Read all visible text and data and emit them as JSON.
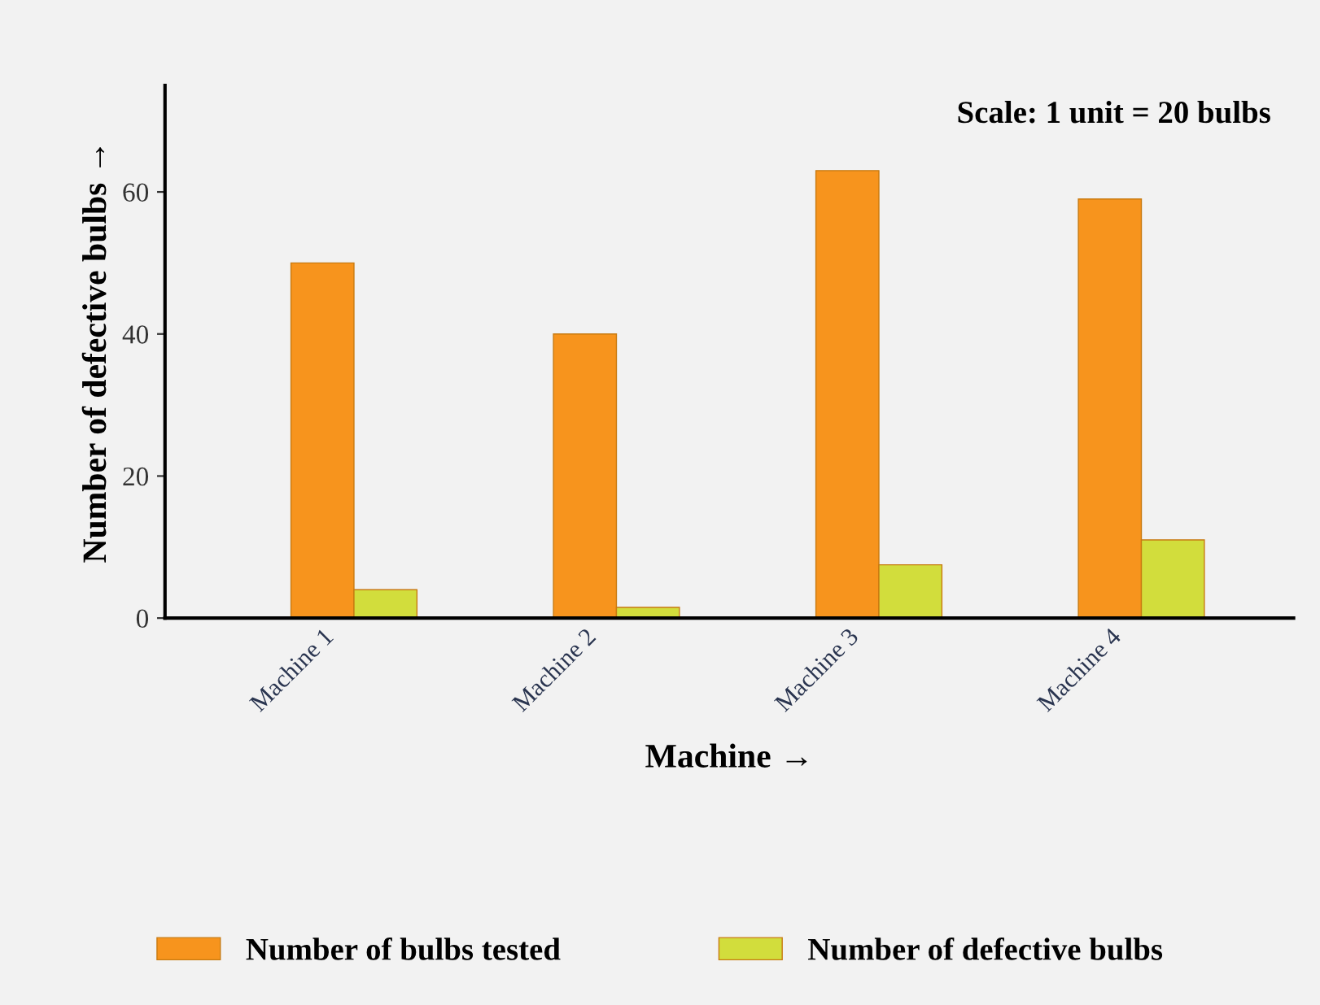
{
  "chart_data": {
    "type": "bar",
    "xlabel": "Machine →",
    "ylabel": "Number of defective bulbs →",
    "categories": [
      "Machine 1",
      "Machine 2",
      "Machine 3",
      "Machine 4"
    ],
    "series": [
      {
        "name": "Number of bulbs tested",
        "color": "#f7941d",
        "values": [
          50,
          40,
          63,
          59
        ]
      },
      {
        "name": "Number of defective bulbs",
        "color": "#d2dd3c",
        "values": [
          4,
          1.5,
          7.5,
          11
        ]
      }
    ],
    "ylim": [
      0,
      75
    ],
    "yticks": [
      0,
      20,
      40,
      60
    ],
    "legend": "bottom",
    "grid": false,
    "annotations": [
      "Scale: 1 unit = 20 bulbs"
    ]
  }
}
